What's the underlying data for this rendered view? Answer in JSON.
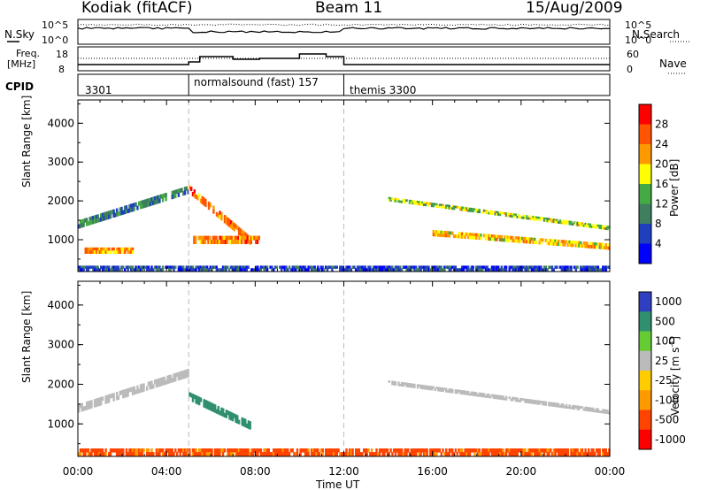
{
  "header": {
    "radar": "Kodiak (fitACF)",
    "beam": "Beam 11",
    "date": "15/Aug/2009"
  },
  "summary_panels": {
    "nsky_label": "N.Sky",
    "nsearch_label": "N.Search",
    "nsky_ticks": [
      "10^5",
      "10^0"
    ],
    "nsky_ticks_right": [
      "10^5",
      "10^0"
    ],
    "freq_label_1": "Freq.",
    "freq_label_2": "[MHz]",
    "freq_ticks": [
      "18",
      "8"
    ],
    "nave_label": "Nave",
    "nave_ticks": [
      "60",
      "0"
    ],
    "cpid_label": "CPID",
    "cpid_modes": [
      "3301",
      "normalsound (fast) 157",
      "themis 3300"
    ]
  },
  "colors": {
    "power_scale": [
      "#0000ff",
      "#1f3fbf",
      "#3f7f5f",
      "#44aa44",
      "#ffff00",
      "#ff9900",
      "#ff5500",
      "#ff0000"
    ],
    "velocity_scale": [
      "#ff0000",
      "#ff4400",
      "#ff9900",
      "#ffcc00",
      "#bbbbbb",
      "#66cc33",
      "#2f8f6f",
      "#2f3fbf"
    ],
    "ground_scatter": "#bbbbbb"
  },
  "chart_data": [
    {
      "type": "heatmap",
      "name": "power",
      "ylabel": "Slant Range [km]",
      "xlabel": "Time UT",
      "x_ticks": [
        "00:00",
        "04:00",
        "08:00",
        "12:00",
        "16:00",
        "20:00",
        "00:00"
      ],
      "y_ticks": [
        "1000",
        "2000",
        "3000",
        "4000"
      ],
      "xlim": [
        0,
        24
      ],
      "ylim": [
        180,
        4600
      ],
      "colorbar_label": "Power [dB]",
      "colorbar_ticks": [
        "28",
        "24",
        "20",
        "16",
        "12",
        "8",
        "4"
      ],
      "vertical_markers_hours": [
        5.0,
        12.0
      ],
      "features": [
        {
          "t": [
            0.0,
            5.0
          ],
          "r_start": [
            1300,
            2200
          ],
          "r_end": [
            1500,
            2400
          ],
          "level": 12
        },
        {
          "t": [
            0.3,
            2.5
          ],
          "r_start": [
            650,
            650
          ],
          "r_end": [
            800,
            800
          ],
          "level": 24
        },
        {
          "t": [
            5.0,
            7.8
          ],
          "r_start": [
            2200,
            850
          ],
          "r_end": [
            2400,
            1050
          ],
          "level": 26
        },
        {
          "t": [
            5.2,
            8.2
          ],
          "r_start": [
            900,
            900
          ],
          "r_end": [
            1100,
            1100
          ],
          "level": 26
        },
        {
          "t": [
            14.0,
            24.0
          ],
          "r_start": [
            2000,
            1250
          ],
          "r_end": [
            2100,
            1350
          ],
          "level": 18
        },
        {
          "t": [
            16.0,
            24.0
          ],
          "r_start": [
            1100,
            750
          ],
          "r_end": [
            1250,
            900
          ],
          "level": 22
        },
        {
          "t": [
            0.0,
            24.0
          ],
          "r_start": [
            200,
            200
          ],
          "r_end": [
            330,
            330
          ],
          "level": 8
        }
      ]
    },
    {
      "type": "heatmap",
      "name": "velocity",
      "ylabel": "Slant Range [km]",
      "xlabel": "Time UT",
      "x_ticks": [
        "00:00",
        "04:00",
        "08:00",
        "12:00",
        "16:00",
        "20:00",
        "00:00"
      ],
      "y_ticks": [
        "1000",
        "2000",
        "3000",
        "4000"
      ],
      "xlim": [
        0,
        24
      ],
      "ylim": [
        180,
        4600
      ],
      "colorbar_label": "Velocity [m s",
      "colorbar_sup": "-1",
      "colorbar_ticks": [
        "1000",
        "500",
        "100",
        "25",
        "-25",
        "-100",
        "-500",
        "-1000"
      ],
      "vertical_markers_hours": [
        5.0,
        12.0
      ],
      "features": [
        {
          "t": [
            0.0,
            5.0
          ],
          "r_start": [
            1300,
            2200
          ],
          "r_end": [
            1500,
            2400
          ],
          "level": 0
        },
        {
          "t": [
            5.0,
            7.8
          ],
          "r_start": [
            1600,
            850
          ],
          "r_end": [
            1800,
            1050
          ],
          "level": 300
        },
        {
          "t": [
            14.0,
            24.0
          ],
          "r_start": [
            2000,
            1250
          ],
          "r_end": [
            2100,
            1350
          ],
          "level": 0
        },
        {
          "t": [
            0.0,
            24.0
          ],
          "r_start": [
            200,
            200
          ],
          "r_end": [
            380,
            380
          ],
          "level": -120
        }
      ]
    }
  ]
}
